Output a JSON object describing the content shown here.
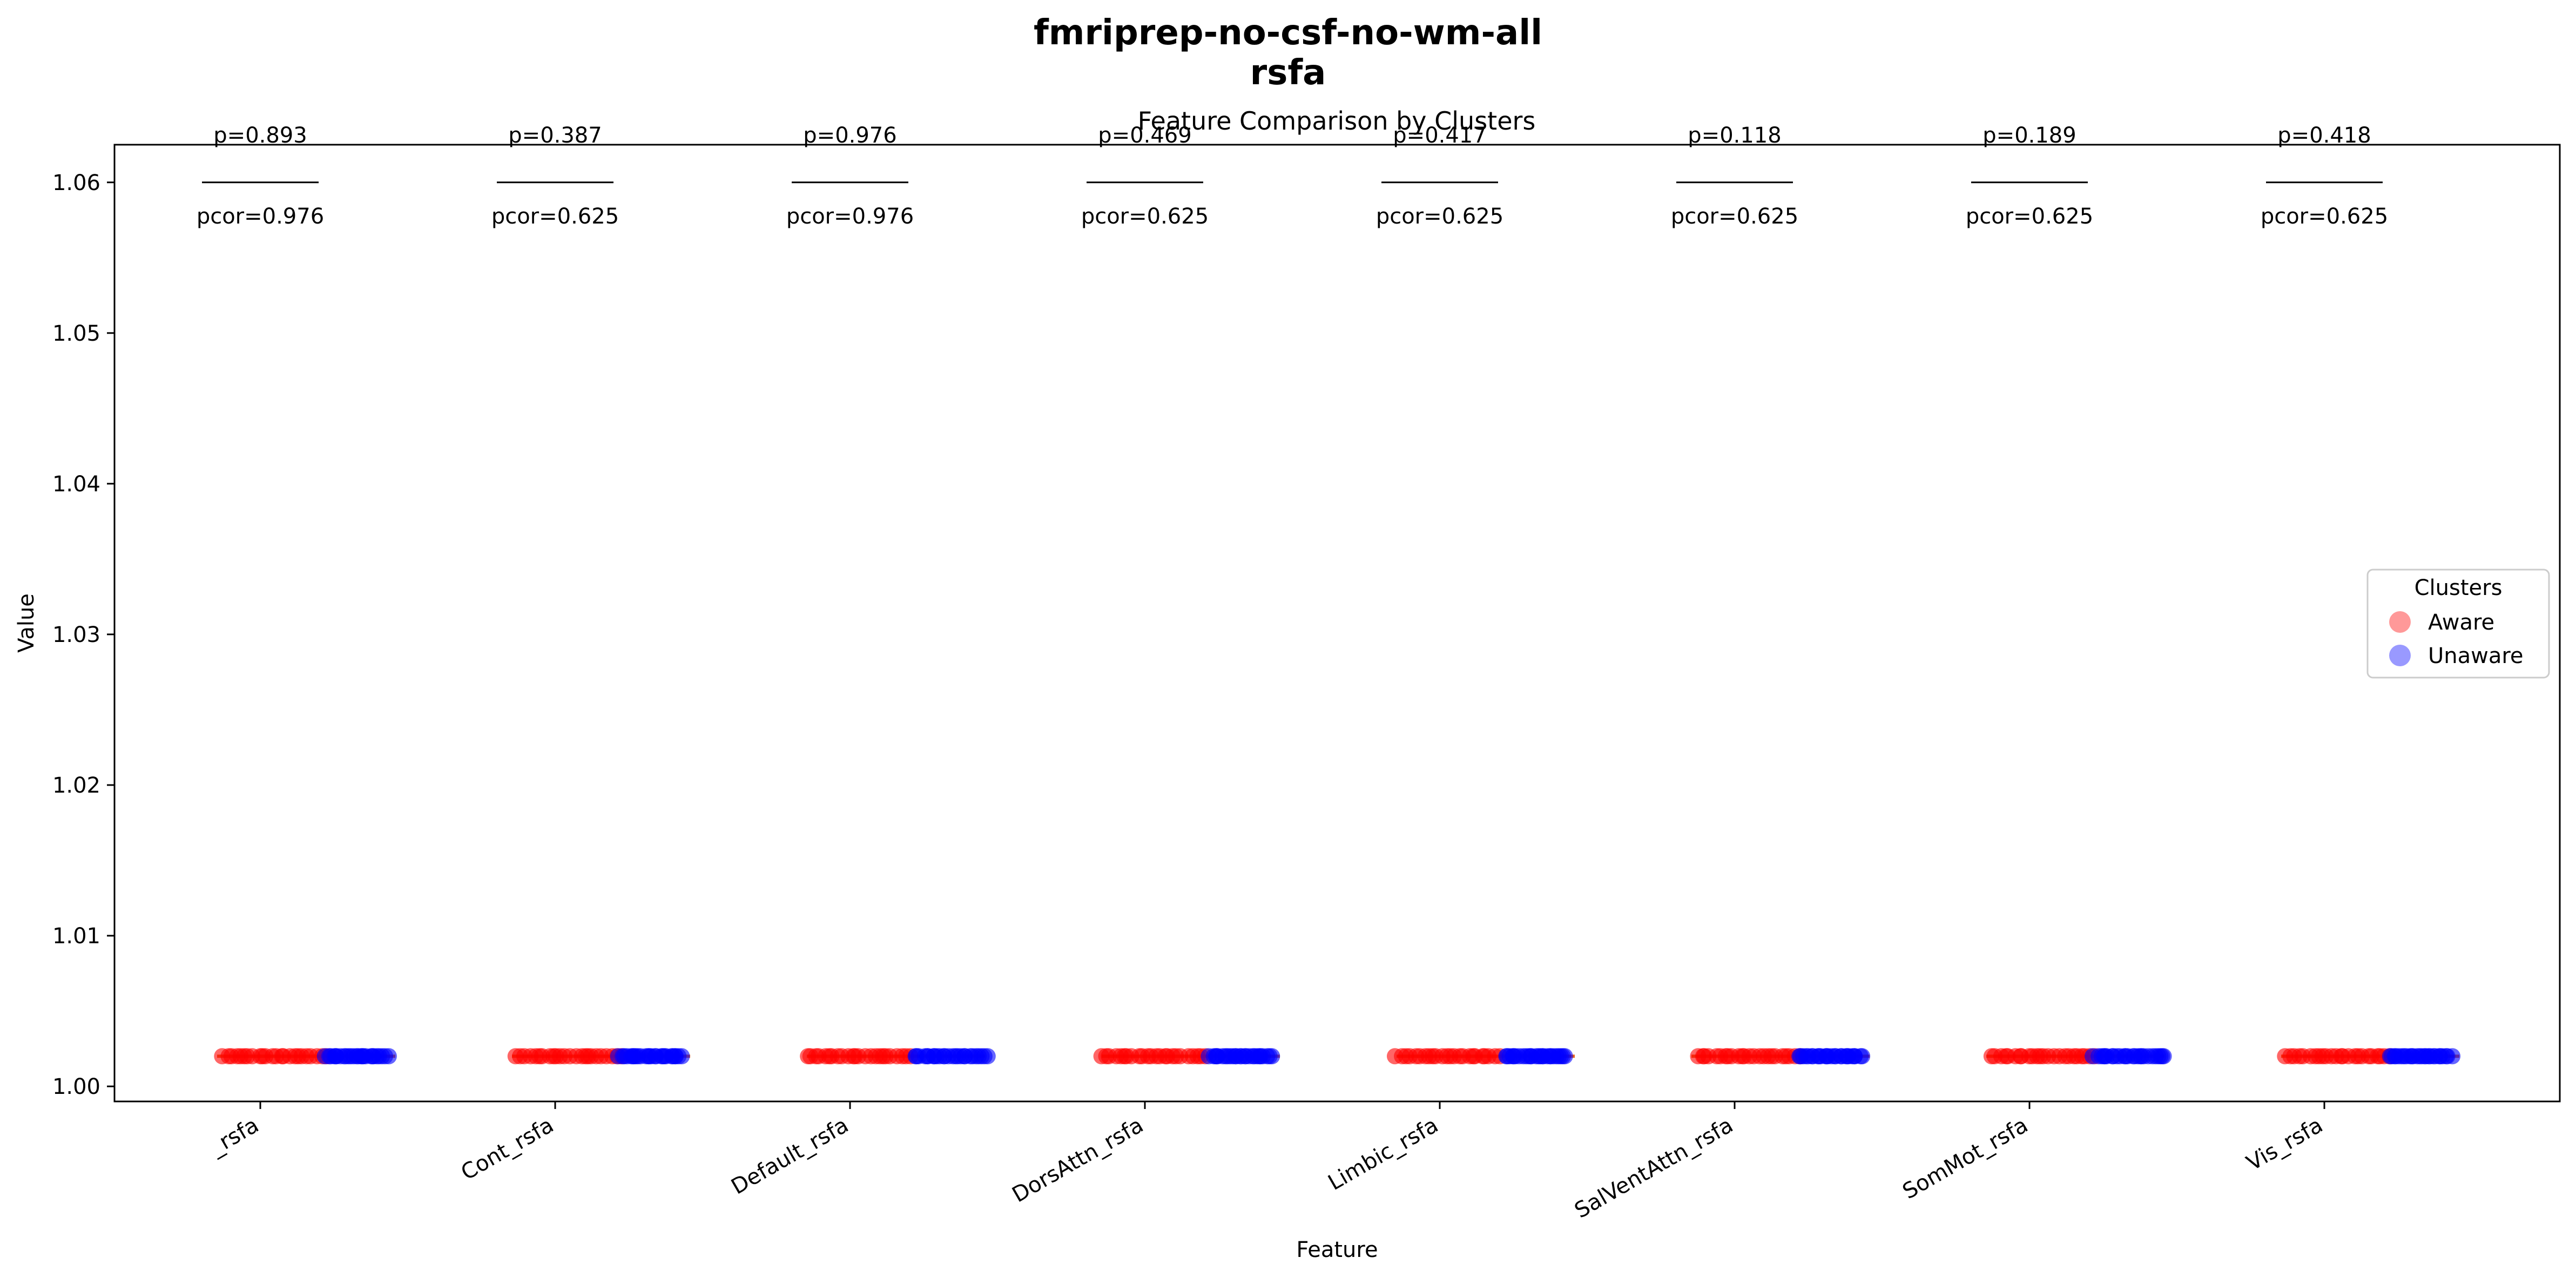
{
  "figure_title_line1": "fmriprep-no-csf-no-wm-all",
  "figure_title_line2": "rsfa",
  "chart_data": {
    "type": "scatter",
    "title": "Feature Comparison by Clusters",
    "xlabel": "Feature",
    "ylabel": "Value",
    "ylim": [
      0.999,
      1.0625
    ],
    "yticks": [
      1.0,
      1.01,
      1.02,
      1.03,
      1.04,
      1.05,
      1.06
    ],
    "ytick_labels": [
      "1.00",
      "1.01",
      "1.02",
      "1.03",
      "1.04",
      "1.05",
      "1.06"
    ],
    "categories": [
      "_rsfa",
      "Cont_rsfa",
      "Default_rsfa",
      "DorsAttn_rsfa",
      "Limbic_rsfa",
      "SalVentAttn_rsfa",
      "SomMot_rsfa",
      "Vis_rsfa"
    ],
    "series": [
      {
        "name": "Aware",
        "color": "#ff0000",
        "legend_color": "#ff9999",
        "values": [
          1.002,
          1.002,
          1.002,
          1.002,
          1.002,
          1.002,
          1.002,
          1.002
        ]
      },
      {
        "name": "Unaware",
        "color": "#0000ff",
        "legend_color": "#9999ff",
        "values": [
          1.002,
          1.002,
          1.002,
          1.002,
          1.002,
          1.002,
          1.002,
          1.002
        ]
      }
    ],
    "annotations": [
      {
        "p": "p=0.893",
        "pcor": "pcor=0.976"
      },
      {
        "p": "p=0.387",
        "pcor": "pcor=0.625"
      },
      {
        "p": "p=0.976",
        "pcor": "pcor=0.976"
      },
      {
        "p": "p=0.469",
        "pcor": "pcor=0.625"
      },
      {
        "p": "p=0.417",
        "pcor": "pcor=0.625"
      },
      {
        "p": "p=0.118",
        "pcor": "pcor=0.625"
      },
      {
        "p": "p=0.189",
        "pcor": "pcor=0.625"
      },
      {
        "p": "p=0.418",
        "pcor": "pcor=0.625"
      }
    ],
    "significance_bar_y": 1.06,
    "legend": {
      "title": "Clusters",
      "placement": "center-right"
    },
    "grid": false,
    "median_line_color": "#e8641e"
  }
}
